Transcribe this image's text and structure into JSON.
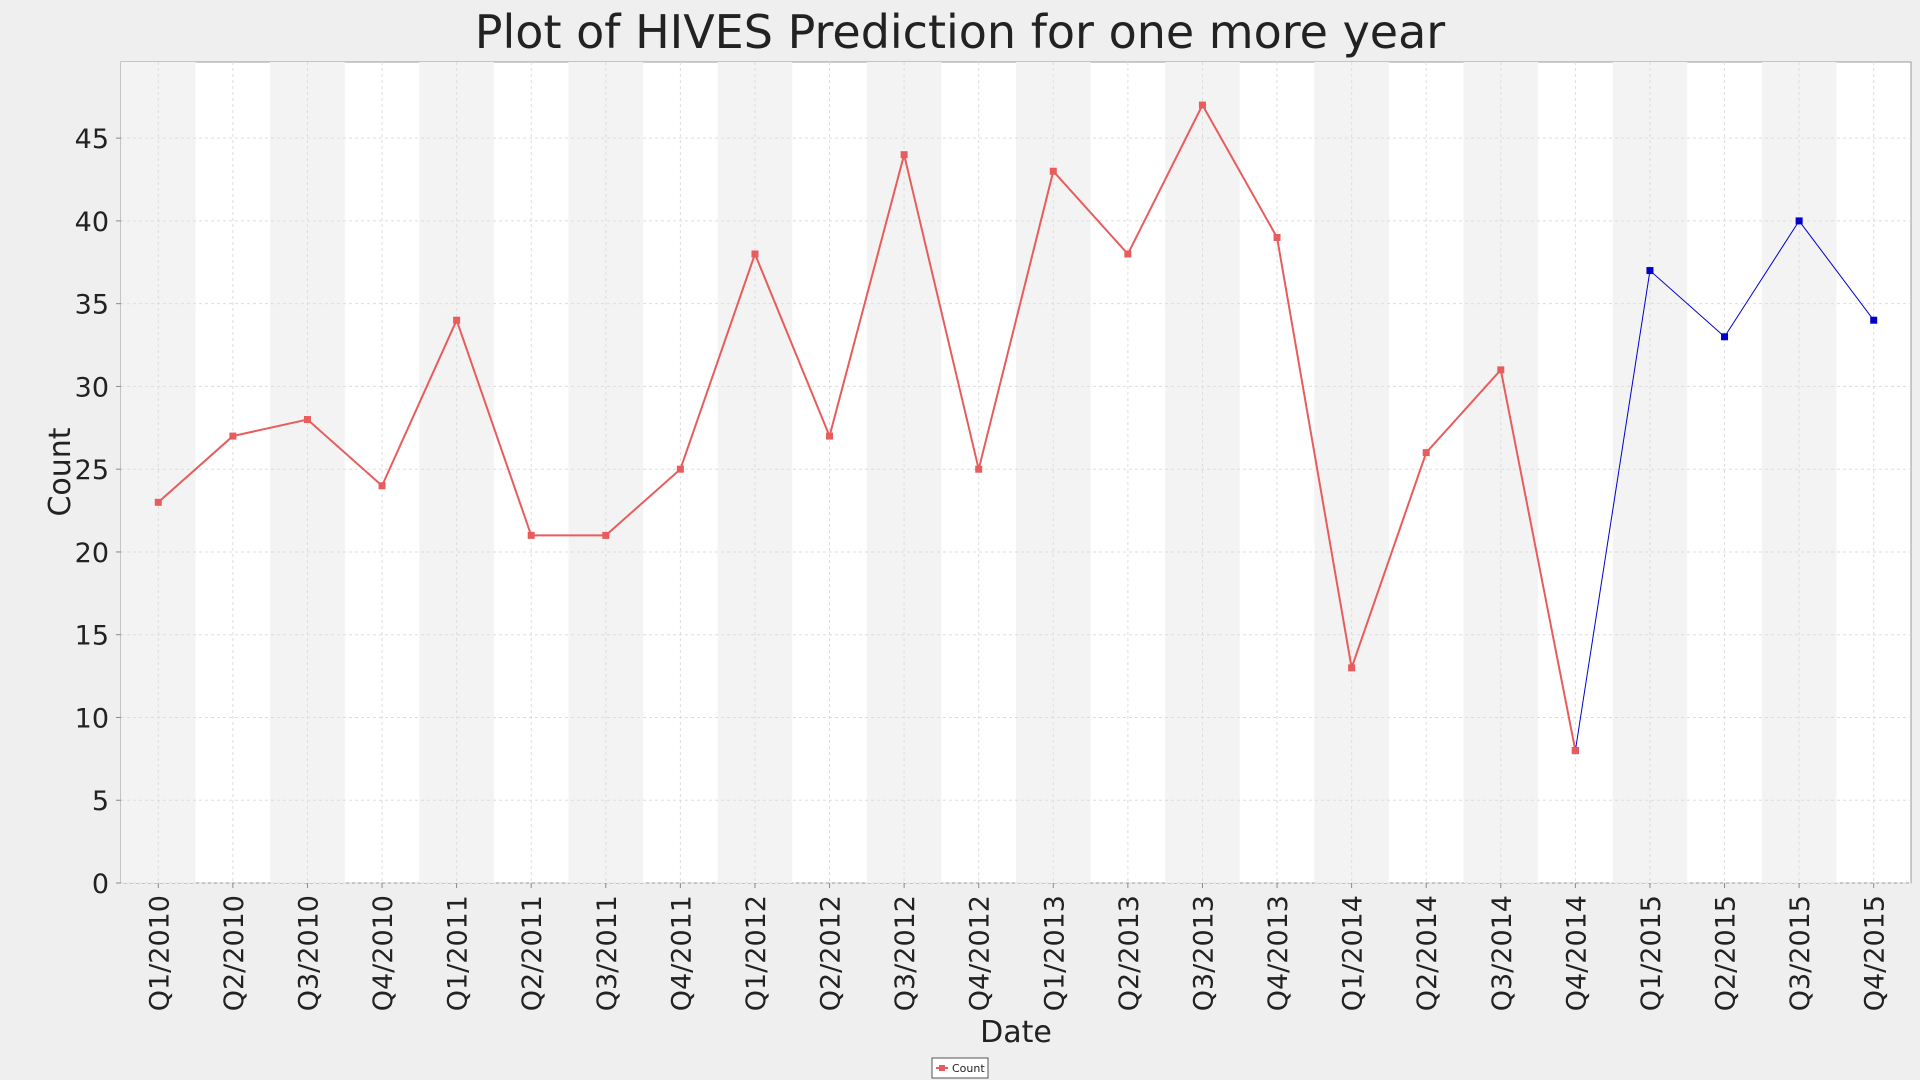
{
  "chart_data": {
    "type": "line",
    "title": "Plot of HIVES Prediction for one more year",
    "x_label": "Date",
    "y_label": "Count",
    "categories": [
      "Q1/2010",
      "Q2/2010",
      "Q3/2010",
      "Q4/2010",
      "Q1/2011",
      "Q2/2011",
      "Q3/2011",
      "Q4/2011",
      "Q1/2012",
      "Q2/2012",
      "Q3/2012",
      "Q4/2012",
      "Q1/2013",
      "Q2/2013",
      "Q3/2013",
      "Q4/2013",
      "Q1/2014",
      "Q2/2014",
      "Q3/2014",
      "Q4/2014",
      "Q1/2015",
      "Q2/2015",
      "Q3/2015",
      "Q4/2015"
    ],
    "series": [
      {
        "name": "Count",
        "color": "#e85c5c",
        "values": [
          23,
          27,
          28,
          24,
          34,
          21,
          21,
          25,
          38,
          27,
          44,
          25,
          43,
          38,
          47,
          39,
          13,
          26,
          31,
          8,
          null,
          null,
          null,
          null
        ]
      },
      {
        "color": "#0000cc",
        "values": [
          null,
          null,
          null,
          null,
          null,
          null,
          null,
          null,
          null,
          null,
          null,
          null,
          null,
          null,
          null,
          null,
          null,
          null,
          null,
          8,
          37,
          33,
          40,
          34
        ]
      }
    ],
    "ylim": [
      0,
      49.6
    ],
    "yticks": [
      0,
      5,
      10,
      15,
      20,
      25,
      30,
      35,
      40,
      45
    ],
    "grid": true,
    "legend": "bottom"
  }
}
